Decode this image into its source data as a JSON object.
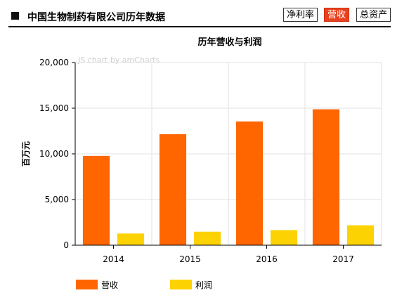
{
  "header": {
    "title": "中国生物制药有限公司历年数据",
    "tabs": [
      {
        "label": "净利率",
        "active": false
      },
      {
        "label": "营收",
        "active": true
      },
      {
        "label": "总资产",
        "active": false
      }
    ],
    "active_tab_color": "#e8411d"
  },
  "watermark": "JS chart by amCharts",
  "chart_data": {
    "type": "bar",
    "title": "历年营收与利润",
    "xlabel": "",
    "ylabel": "百万元",
    "categories": [
      "2014",
      "2015",
      "2016",
      "2017"
    ],
    "series": [
      {
        "name": "营收",
        "color": "#ff6600",
        "values": [
          9780,
          12150,
          13550,
          14880
        ]
      },
      {
        "name": "利润",
        "color": "#fcd202",
        "values": [
          1280,
          1480,
          1650,
          2180
        ]
      }
    ],
    "ylim": [
      0,
      20000
    ],
    "yticks": [
      "0",
      "5,000",
      "10,000",
      "15,000",
      "20,000"
    ],
    "grid": true,
    "legend": "bottom-left"
  }
}
